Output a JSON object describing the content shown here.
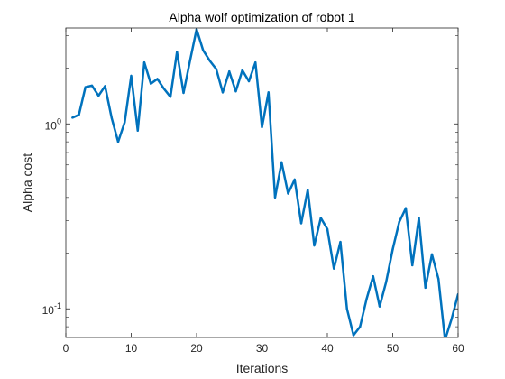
{
  "chart_data": {
    "type": "line",
    "title": "Alpha wolf optimization of robot 1",
    "xlabel": "Iterations",
    "ylabel": "Alpha cost",
    "yscale": "log",
    "xlim": [
      0,
      60
    ],
    "ylim": [
      0.07,
      3.3
    ],
    "x_ticks": [
      0,
      10,
      20,
      30,
      40,
      50,
      60
    ],
    "y_ticks": [
      {
        "value": 0.1,
        "base": "10",
        "exponent": "-1"
      },
      {
        "value": 1,
        "base": "10",
        "exponent": "0"
      }
    ],
    "grid": false,
    "box": true,
    "line_color": "#0072BD",
    "x": [
      1,
      2,
      3,
      4,
      5,
      6,
      7,
      8,
      9,
      10,
      11,
      12,
      13,
      14,
      15,
      16,
      17,
      18,
      19,
      20,
      21,
      22,
      23,
      24,
      25,
      26,
      27,
      28,
      29,
      30,
      31,
      32,
      33,
      34,
      35,
      36,
      37,
      38,
      39,
      40,
      41,
      42,
      43,
      44,
      45,
      46,
      47,
      48,
      49,
      50,
      51,
      52,
      53,
      54,
      55,
      56,
      57,
      58,
      59,
      60
    ],
    "series": [
      {
        "values": [
          1.08,
          1.12,
          1.58,
          1.61,
          1.42,
          1.6,
          1.08,
          0.8,
          1.02,
          1.82,
          0.92,
          2.15,
          1.65,
          1.75,
          1.55,
          1.4,
          2.45,
          1.47,
          2.2,
          3.25,
          2.5,
          2.2,
          1.98,
          1.48,
          1.92,
          1.5,
          1.95,
          1.7,
          2.15,
          0.96,
          1.48,
          0.4,
          0.62,
          0.42,
          0.5,
          0.29,
          0.44,
          0.22,
          0.31,
          0.27,
          0.165,
          0.23,
          0.1,
          0.072,
          0.08,
          0.113,
          0.15,
          0.103,
          0.14,
          0.21,
          0.295,
          0.35,
          0.172,
          0.31,
          0.13,
          0.197,
          0.145,
          0.068,
          0.088,
          0.12
        ]
      }
    ]
  }
}
